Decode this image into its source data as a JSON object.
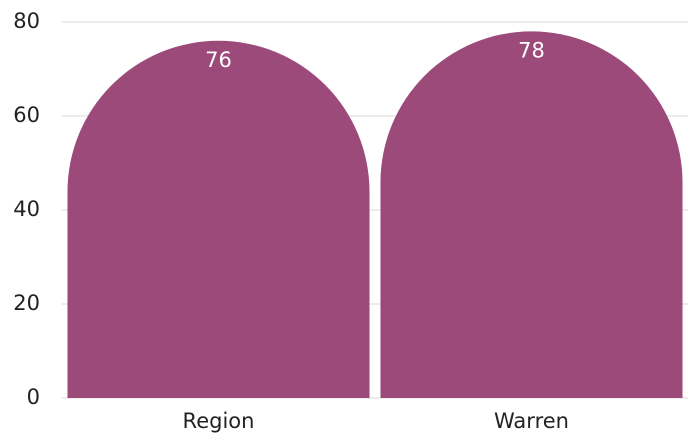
{
  "chart_data": {
    "type": "bar",
    "categories": [
      "Region",
      "Warren"
    ],
    "values": [
      76,
      78
    ],
    "color": "#9c4a7a",
    "ylim": [
      0,
      80
    ],
    "yticks": [
      0,
      20,
      40,
      60,
      80
    ],
    "grid": true
  }
}
